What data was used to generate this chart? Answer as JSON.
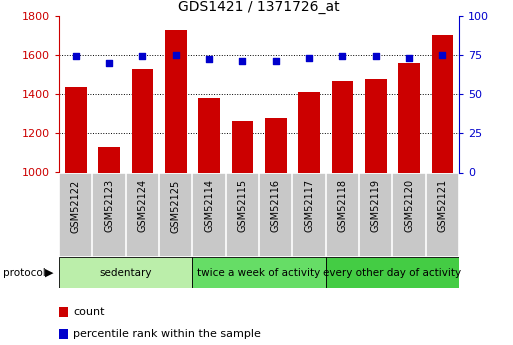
{
  "title": "GDS1421 / 1371726_at",
  "samples": [
    "GSM52122",
    "GSM52123",
    "GSM52124",
    "GSM52125",
    "GSM52114",
    "GSM52115",
    "GSM52116",
    "GSM52117",
    "GSM52118",
    "GSM52119",
    "GSM52120",
    "GSM52121"
  ],
  "counts": [
    1435,
    1130,
    1530,
    1725,
    1380,
    1260,
    1280,
    1410,
    1465,
    1475,
    1560,
    1700
  ],
  "percentiles": [
    74,
    70,
    74,
    75,
    72,
    71,
    71,
    73,
    74,
    74,
    73,
    75
  ],
  "ylim_left": [
    1000,
    1800
  ],
  "ylim_right": [
    0,
    100
  ],
  "yticks_left": [
    1000,
    1200,
    1400,
    1600,
    1800
  ],
  "yticks_right": [
    0,
    25,
    50,
    75,
    100
  ],
  "bar_color": "#cc0000",
  "scatter_color": "#0000cc",
  "groups": [
    {
      "label": "sedentary",
      "start": 0,
      "end": 4,
      "color": "#bbeeaa"
    },
    {
      "label": "twice a week of activity",
      "start": 4,
      "end": 8,
      "color": "#66dd66"
    },
    {
      "label": "every other day of activity",
      "start": 8,
      "end": 12,
      "color": "#44cc44"
    }
  ],
  "protocol_label": "protocol",
  "legend_count": "count",
  "legend_percentile": "percentile rank within the sample",
  "background_color": "#ffffff",
  "tick_label_color_left": "#cc0000",
  "tick_label_color_right": "#0000cc",
  "sample_bg_color": "#c8c8c8",
  "sample_border_color": "#ffffff"
}
